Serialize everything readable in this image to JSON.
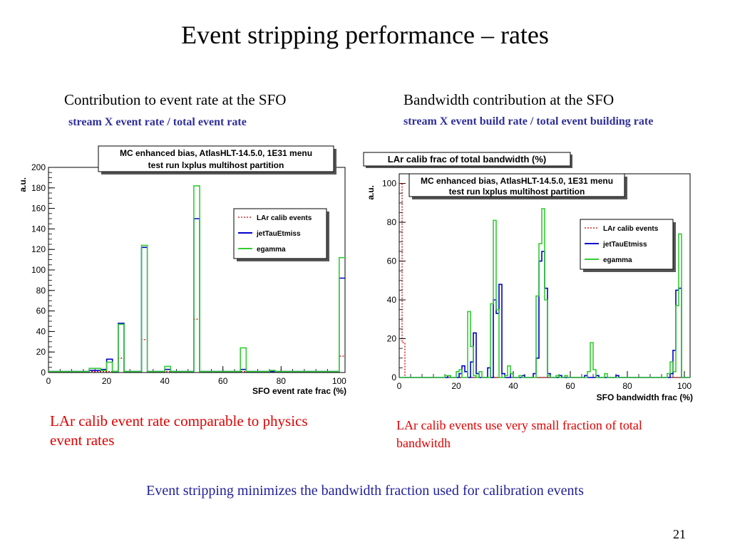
{
  "slide": {
    "title": "Event stripping performance – rates",
    "left_heading": "Contribution to event rate at the SFO",
    "left_subheading": "stream X event rate / total event rate",
    "right_heading": "Bandwidth contribution at the SFO",
    "right_subheading": "stream X event build rate / total event building rate",
    "left_note": "LAr calib event rate comparable to physics event rates",
    "right_note": "LAr calib events use very small fraction of total bandwitdh",
    "footer": "Event stripping minimizes the bandwidth fraction used for calibration events",
    "page_number": "21"
  },
  "colors": {
    "lar": "#cc0000",
    "jet": "#0000cc",
    "egamma": "#33cc33",
    "subheading": "#2f2f9a",
    "note": "#e00000",
    "footer": "#1f1f9a"
  },
  "chart_data": [
    {
      "type": "histogram",
      "title": "",
      "info_box": [
        "MC enhanced bias, AtlasHLT-14.5.0, 1E31 menu",
        "test run lxplus multihost partition"
      ],
      "xlabel": "SFO event rate frac (%)",
      "ylabel": "a.u.",
      "xlim": [
        0,
        102
      ],
      "ylim": [
        0,
        200
      ],
      "xticks": [
        0,
        20,
        40,
        60,
        80,
        100
      ],
      "yticks": [
        0,
        20,
        40,
        60,
        80,
        100,
        120,
        140,
        160,
        180,
        200
      ],
      "bin_width": 2,
      "baseline": 1,
      "legend": {
        "position": "top-right",
        "entries": [
          "LAr calib events",
          "jetTauEtmiss",
          "egamma"
        ]
      },
      "series": [
        {
          "name": "LAr calib events",
          "style": "dotted",
          "bins": [
            [
              24,
              14
            ],
            [
              32,
              32
            ],
            [
              50,
              52
            ],
            [
              100,
              16
            ]
          ]
        },
        {
          "name": "jetTauEtmiss",
          "style": "solid",
          "bins": [
            [
              14,
              2
            ],
            [
              16,
              2
            ],
            [
              18,
              3
            ],
            [
              20,
              13
            ],
            [
              24,
              48
            ],
            [
              32,
              122
            ],
            [
              40,
              3
            ],
            [
              50,
              150
            ],
            [
              66,
              3
            ],
            [
              100,
              92
            ]
          ]
        },
        {
          "name": "egamma",
          "style": "solid",
          "bins": [
            [
              14,
              4
            ],
            [
              16,
              4
            ],
            [
              18,
              2
            ],
            [
              20,
              10
            ],
            [
              24,
              47
            ],
            [
              32,
              124
            ],
            [
              40,
              6
            ],
            [
              50,
              182
            ],
            [
              66,
              24
            ],
            [
              76,
              2
            ],
            [
              100,
              112
            ]
          ]
        }
      ]
    },
    {
      "type": "histogram",
      "title": "LAr calib frac of total bandwidth (%)",
      "info_box": [
        "MC enhanced bias, AtlasHLT-14.5.0, 1E31 menu",
        "test run lxplus multihost partition"
      ],
      "xlabel": "SFO bandwidth frac (%)",
      "ylabel": "a.u.",
      "xlim": [
        0,
        102
      ],
      "ylim": [
        0,
        105
      ],
      "xticks": [
        0,
        20,
        40,
        60,
        80,
        100
      ],
      "yticks": [
        0,
        20,
        40,
        60,
        80,
        100
      ],
      "bin_width": 1,
      "baseline": 0,
      "legend": {
        "position": "top-right",
        "entries": [
          "LAr calib events",
          "jetTauEtmiss",
          "egamma"
        ]
      },
      "series": [
        {
          "name": "LAr calib events",
          "style": "dotted",
          "bins": [
            [
              0,
              100
            ],
            [
              1,
              18
            ]
          ]
        },
        {
          "name": "jetTauEtmiss",
          "style": "solid",
          "bins": [
            [
              17,
              1
            ],
            [
              21,
              2
            ],
            [
              22,
              6
            ],
            [
              23,
              3
            ],
            [
              25,
              8
            ],
            [
              26,
              23
            ],
            [
              27,
              2
            ],
            [
              31,
              5
            ],
            [
              33,
              40
            ],
            [
              34,
              33
            ],
            [
              35,
              48
            ],
            [
              36,
              2
            ],
            [
              39,
              2
            ],
            [
              43,
              1
            ],
            [
              47,
              2
            ],
            [
              48,
              10
            ],
            [
              49,
              60
            ],
            [
              50,
              65
            ],
            [
              51,
              46
            ],
            [
              52,
              2
            ],
            [
              56,
              1
            ],
            [
              65,
              1
            ],
            [
              69,
              1
            ],
            [
              76,
              1
            ],
            [
              95,
              2
            ],
            [
              96,
              14
            ],
            [
              97,
              45
            ],
            [
              98,
              46
            ]
          ]
        },
        {
          "name": "egamma",
          "style": "solid",
          "bins": [
            [
              16,
              1
            ],
            [
              17,
              1
            ],
            [
              20,
              3
            ],
            [
              21,
              4
            ],
            [
              24,
              34
            ],
            [
              25,
              16
            ],
            [
              26,
              1
            ],
            [
              28,
              3
            ],
            [
              32,
              38
            ],
            [
              33,
              81
            ],
            [
              34,
              35
            ],
            [
              37,
              1
            ],
            [
              38,
              6
            ],
            [
              39,
              2
            ],
            [
              42,
              1
            ],
            [
              48,
              42
            ],
            [
              49,
              69
            ],
            [
              50,
              87
            ],
            [
              51,
              40
            ],
            [
              52,
              1
            ],
            [
              55,
              1
            ],
            [
              58,
              1
            ],
            [
              66,
              3
            ],
            [
              67,
              18
            ],
            [
              68,
              4
            ],
            [
              72,
              2
            ],
            [
              94,
              2
            ],
            [
              95,
              8
            ],
            [
              96,
              3
            ],
            [
              97,
              37
            ],
            [
              98,
              74
            ]
          ]
        }
      ]
    }
  ]
}
